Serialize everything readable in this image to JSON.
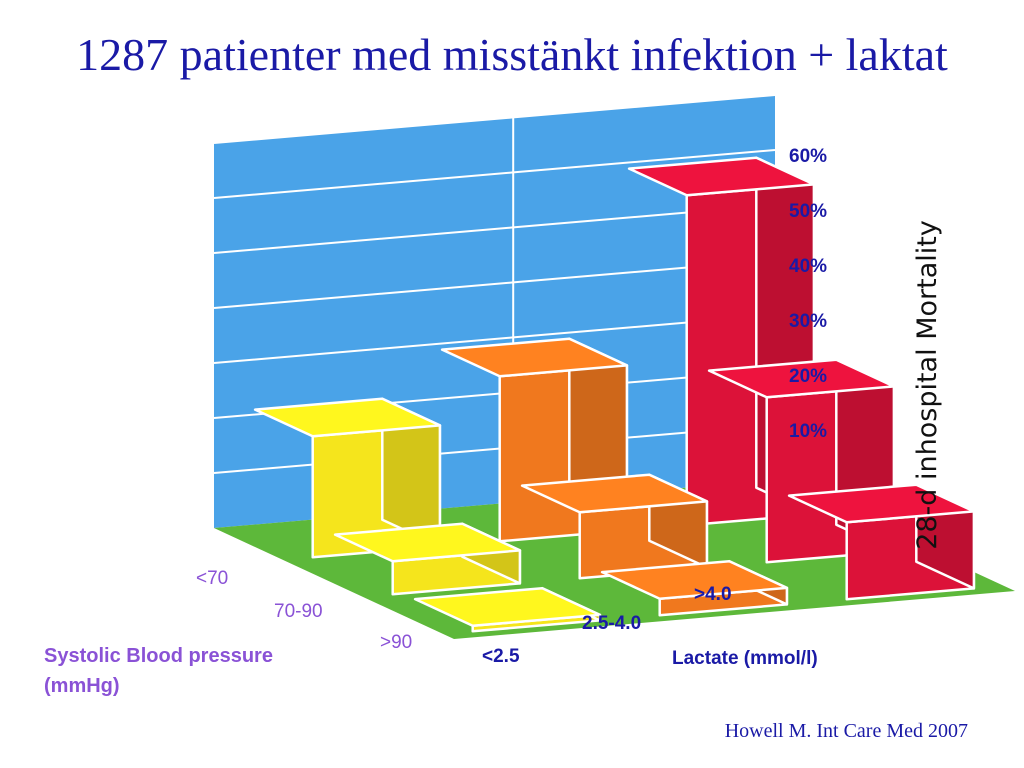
{
  "title": "1287 patienter med misstänkt infektion + laktat",
  "citation": "Howell M. Int Care Med 2007",
  "chart_data": {
    "type": "bar",
    "subtype": "3d-bar-grid",
    "ylabel": "28-d inhospital Mortality",
    "yticks": [
      "10%",
      "20%",
      "30%",
      "40%",
      "50%",
      "60%"
    ],
    "ylim": [
      0,
      70
    ],
    "xlabel": "Lactate (mmol/l)",
    "lactate_categories": [
      "<2.5",
      "2.5-4.0",
      ">4.0"
    ],
    "zlabel": "Systolic Blood pressure (mmHg)",
    "zlabel_lines": [
      "Systolic Blood pressure",
      "(mmHg)"
    ],
    "bp_categories": [
      "<70",
      "70-90",
      ">90"
    ],
    "bars": [
      {
        "bp": "<70",
        "lactate": "<2.5",
        "value": 22
      },
      {
        "bp": "<70",
        "lactate": "2.5-4.0",
        "value": 30
      },
      {
        "bp": "<70",
        "lactate": ">4.0",
        "value": 60
      },
      {
        "bp": "70-90",
        "lactate": "<2.5",
        "value": 6
      },
      {
        "bp": "70-90",
        "lactate": "2.5-4.0",
        "value": 12
      },
      {
        "bp": "70-90",
        "lactate": ">4.0",
        "value": 30
      },
      {
        "bp": ">90",
        "lactate": "<2.5",
        "value": 1
      },
      {
        "bp": ">90",
        "lactate": "2.5-4.0",
        "value": 3
      },
      {
        "bp": ">90",
        "lactate": ">4.0",
        "value": 14
      }
    ],
    "colors": {
      "<2.5": "#f5e51c",
      "2.5-4.0": "#f0781e",
      ">4.0": "#dc1239",
      "wall": "#4aa3e8",
      "floor": "#5db83a"
    },
    "grid": true
  }
}
